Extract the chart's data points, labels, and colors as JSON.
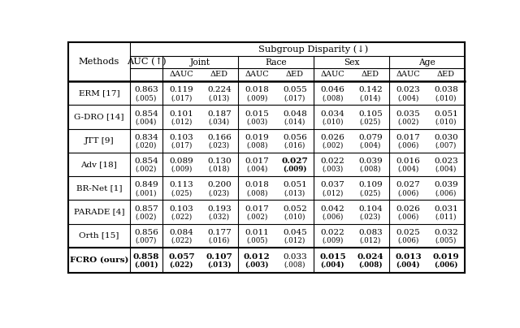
{
  "col_groups": [
    "Joint",
    "Race",
    "Sex",
    "Age"
  ],
  "methods": [
    "ERM [17]",
    "G-DRO [14]",
    "JTT [9]",
    "Adv [18]",
    "BR-Net [1]",
    "PARADE [4]",
    "Orth [15]",
    "FCRO (ours)"
  ],
  "auc_vals": [
    "0.863\n(.005)",
    "0.854\n(.004)",
    "0.834\n(.020)",
    "0.854\n(.002)",
    "0.849\n(.001)",
    "0.857\n(.002)",
    "0.856\n(.007)",
    "0.858\n(.001)"
  ],
  "data": [
    [
      "0.119\n(.017)",
      "0.224\n(.013)",
      "0.018\n(.009)",
      "0.055\n(.017)",
      "0.046\n(.008)",
      "0.142\n(.014)",
      "0.023\n(.004)",
      "0.038\n(.010)"
    ],
    [
      "0.101\n(.012)",
      "0.187\n(.034)",
      "0.015\n(.003)",
      "0.048\n(.014)",
      "0.034\n(.010)",
      "0.105\n(.025)",
      "0.035\n(.002)",
      "0.051\n(.010)"
    ],
    [
      "0.103\n(.017)",
      "0.166\n(.023)",
      "0.019\n(.008)",
      "0.056\n(.016)",
      "0.026\n(.002)",
      "0.079\n(.004)",
      "0.017\n(.006)",
      "0.030\n(.007)"
    ],
    [
      "0.089\n(.009)",
      "0.130\n(.018)",
      "0.017\n(.004)",
      "0.027\n(.009)",
      "0.022\n(.003)",
      "0.039\n(.008)",
      "0.016\n(.004)",
      "0.023\n(.004)"
    ],
    [
      "0.113\n(.025)",
      "0.200\n(.023)",
      "0.018\n(.008)",
      "0.051\n(.013)",
      "0.037\n(.012)",
      "0.109\n(.025)",
      "0.027\n(.006)",
      "0.039\n(.006)"
    ],
    [
      "0.103\n(.022)",
      "0.193\n(.032)",
      "0.017\n(.002)",
      "0.052\n(.010)",
      "0.042\n(.006)",
      "0.104\n(.023)",
      "0.026\n(.006)",
      "0.031\n(.011)"
    ],
    [
      "0.084\n(.022)",
      "0.177\n(.016)",
      "0.011\n(.005)",
      "0.045\n(.012)",
      "0.022\n(.009)",
      "0.083\n(.012)",
      "0.025\n(.006)",
      "0.032\n(.005)"
    ],
    [
      "0.057\n(.022)",
      "0.107\n(.013)",
      "0.012\n(.003)",
      "0.033\n(.008)",
      "0.015\n(.004)",
      "0.024\n(.008)",
      "0.013\n(.004)",
      "0.019\n(.006)"
    ]
  ],
  "bold_fcro": [
    0,
    1,
    2,
    4,
    5,
    6,
    7
  ],
  "bold_adv_col": 3,
  "bold_method_row": 7,
  "background_color": "#ffffff",
  "fs_main": 7.5,
  "fs_std": 6.2,
  "fs_header": 8.2,
  "fs_delta": 7.0
}
